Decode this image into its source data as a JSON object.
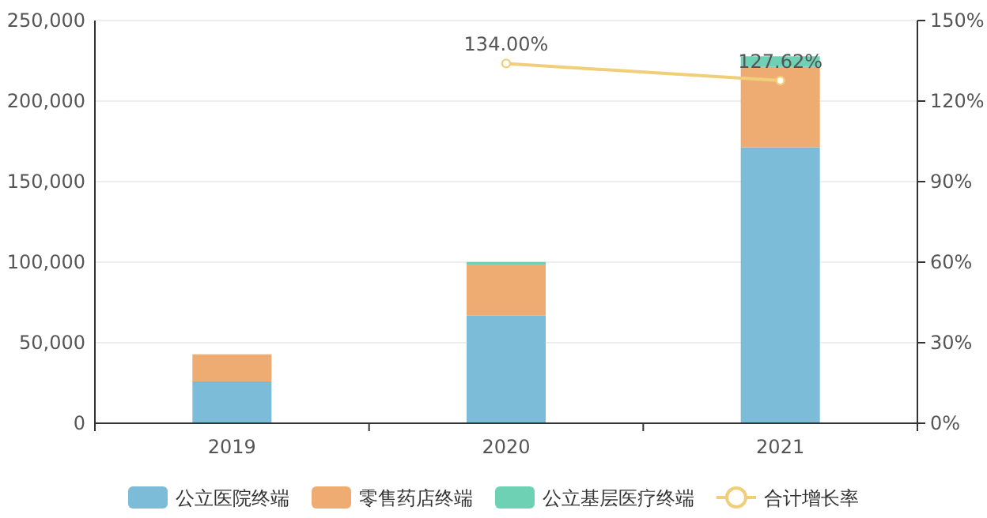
{
  "chart_data": {
    "type": "bar",
    "stacked": true,
    "categories": [
      "2019",
      "2020",
      "2021"
    ],
    "series": [
      {
        "name": "公立医院终端",
        "color": "#7dbcd9",
        "values": [
          26000,
          67000,
          171300
        ]
      },
      {
        "name": "零售药店终端",
        "color": "#eeac72",
        "values": [
          16800,
          31500,
          49900
        ]
      },
      {
        "name": "公立基层医疗终端",
        "color": "#6fd1b3",
        "values": [
          null,
          1600,
          6600
        ]
      },
      {
        "name": "合计增长率",
        "type": "line",
        "axis": "y2",
        "color": "#f0ce7a",
        "marker": "circle",
        "values": [
          null,
          134.0,
          127.62
        ],
        "value_labels": [
          null,
          "134.00%",
          "127.62%"
        ]
      }
    ],
    "ylim": [
      0,
      250000
    ],
    "yticks": [
      {
        "value": 0,
        "label": "0"
      },
      {
        "value": 50000,
        "label": "50,000"
      },
      {
        "value": 100000,
        "label": "100,000"
      },
      {
        "value": 150000,
        "label": "150,000"
      },
      {
        "value": 200000,
        "label": "200,000"
      },
      {
        "value": 250000,
        "label": "250,000"
      }
    ],
    "y2lim": [
      0,
      150
    ],
    "y2ticks": [
      {
        "value": 0,
        "label": "0%"
      },
      {
        "value": 30,
        "label": "30%"
      },
      {
        "value": 60,
        "label": "60%"
      },
      {
        "value": 90,
        "label": "90%"
      },
      {
        "value": 120,
        "label": "120%"
      },
      {
        "value": 150,
        "label": "150%"
      }
    ],
    "grid": "y",
    "legend": "bottom"
  }
}
